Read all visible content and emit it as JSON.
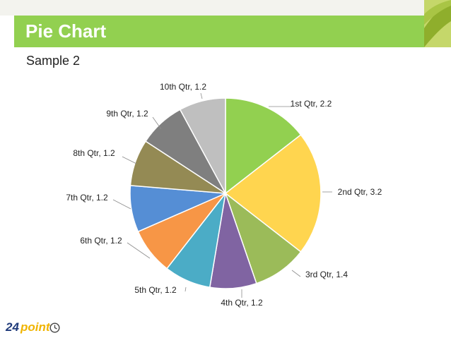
{
  "header": {
    "title": "Pie Chart"
  },
  "subtitle": "Sample 2",
  "logo": {
    "number": "24",
    "word": "point"
  },
  "chart_data": {
    "type": "pie",
    "title": "",
    "categories": [
      "1st Qtr",
      "2nd Qtr",
      "3rd Qtr",
      "4th Qtr",
      "5th Qtr",
      "6th Qtr",
      "7th Qtr",
      "8th Qtr",
      "9th Qtr",
      "10th Qtr"
    ],
    "values": [
      2.2,
      3.2,
      1.4,
      1.2,
      1.2,
      1.2,
      1.2,
      1.2,
      1.2,
      1.2
    ],
    "labels": [
      "1st Qtr, 2.2",
      "2nd Qtr, 3.2",
      "3rd Qtr, 1.4",
      "4th Qtr, 1.2",
      "5th Qtr, 1.2",
      "6th Qtr, 1.2",
      "7th Qtr, 1.2",
      "8th Qtr, 1.2",
      "9th Qtr, 1.2",
      "10th Qtr, 1.2"
    ],
    "colors": [
      "#92d050",
      "#ffd54f",
      "#9bbb59",
      "#8064a2",
      "#4bacc6",
      "#f79646",
      "#558ed5",
      "#948a54",
      "#7f7f7f",
      "#bfbfbf"
    ],
    "legend": "none",
    "start": "top, clockwise"
  }
}
